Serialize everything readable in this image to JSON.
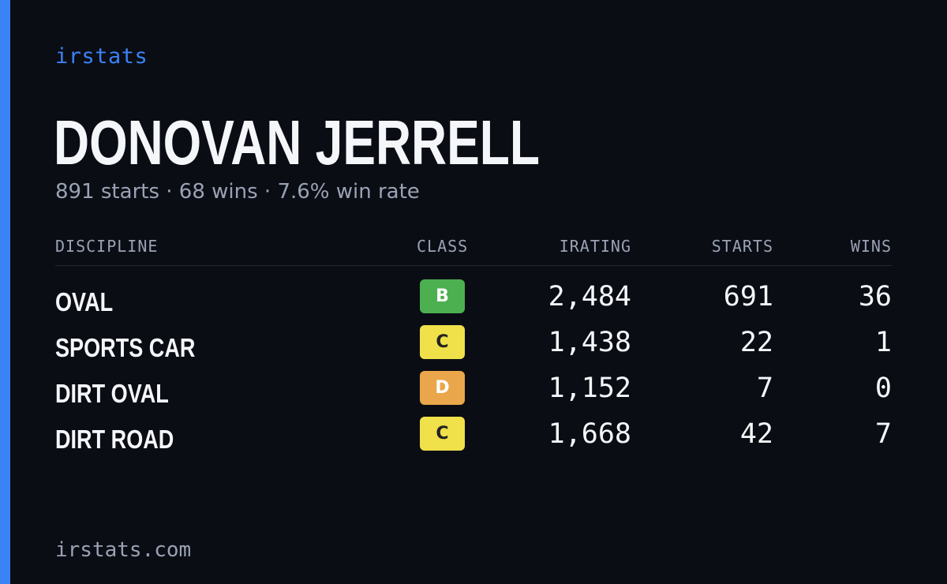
{
  "brand": "irstats",
  "driver": {
    "name": "DONOVAN JERRELL",
    "summary": "891 starts · 68 wins · 7.6% win rate"
  },
  "table": {
    "headers": {
      "discipline": "DISCIPLINE",
      "class": "CLASS",
      "irating": "IRATING",
      "starts": "STARTS",
      "wins": "WINS"
    },
    "rows": [
      {
        "discipline": "OVAL",
        "class": "B",
        "irating": "2,484",
        "starts": "691",
        "wins": "36"
      },
      {
        "discipline": "SPORTS CAR",
        "class": "C",
        "irating": "1,438",
        "starts": "22",
        "wins": "1"
      },
      {
        "discipline": "DIRT OVAL",
        "class": "D",
        "irating": "1,152",
        "starts": "7",
        "wins": "0"
      },
      {
        "discipline": "DIRT ROAD",
        "class": "C",
        "irating": "1,668",
        "starts": "42",
        "wins": "7"
      }
    ]
  },
  "footer": "irstats.com",
  "colors": {
    "background": "#0a0d14",
    "accent": "#3b82f6",
    "class_b": "#4caf50",
    "class_c": "#f0e04a",
    "class_d": "#eaa64a"
  }
}
